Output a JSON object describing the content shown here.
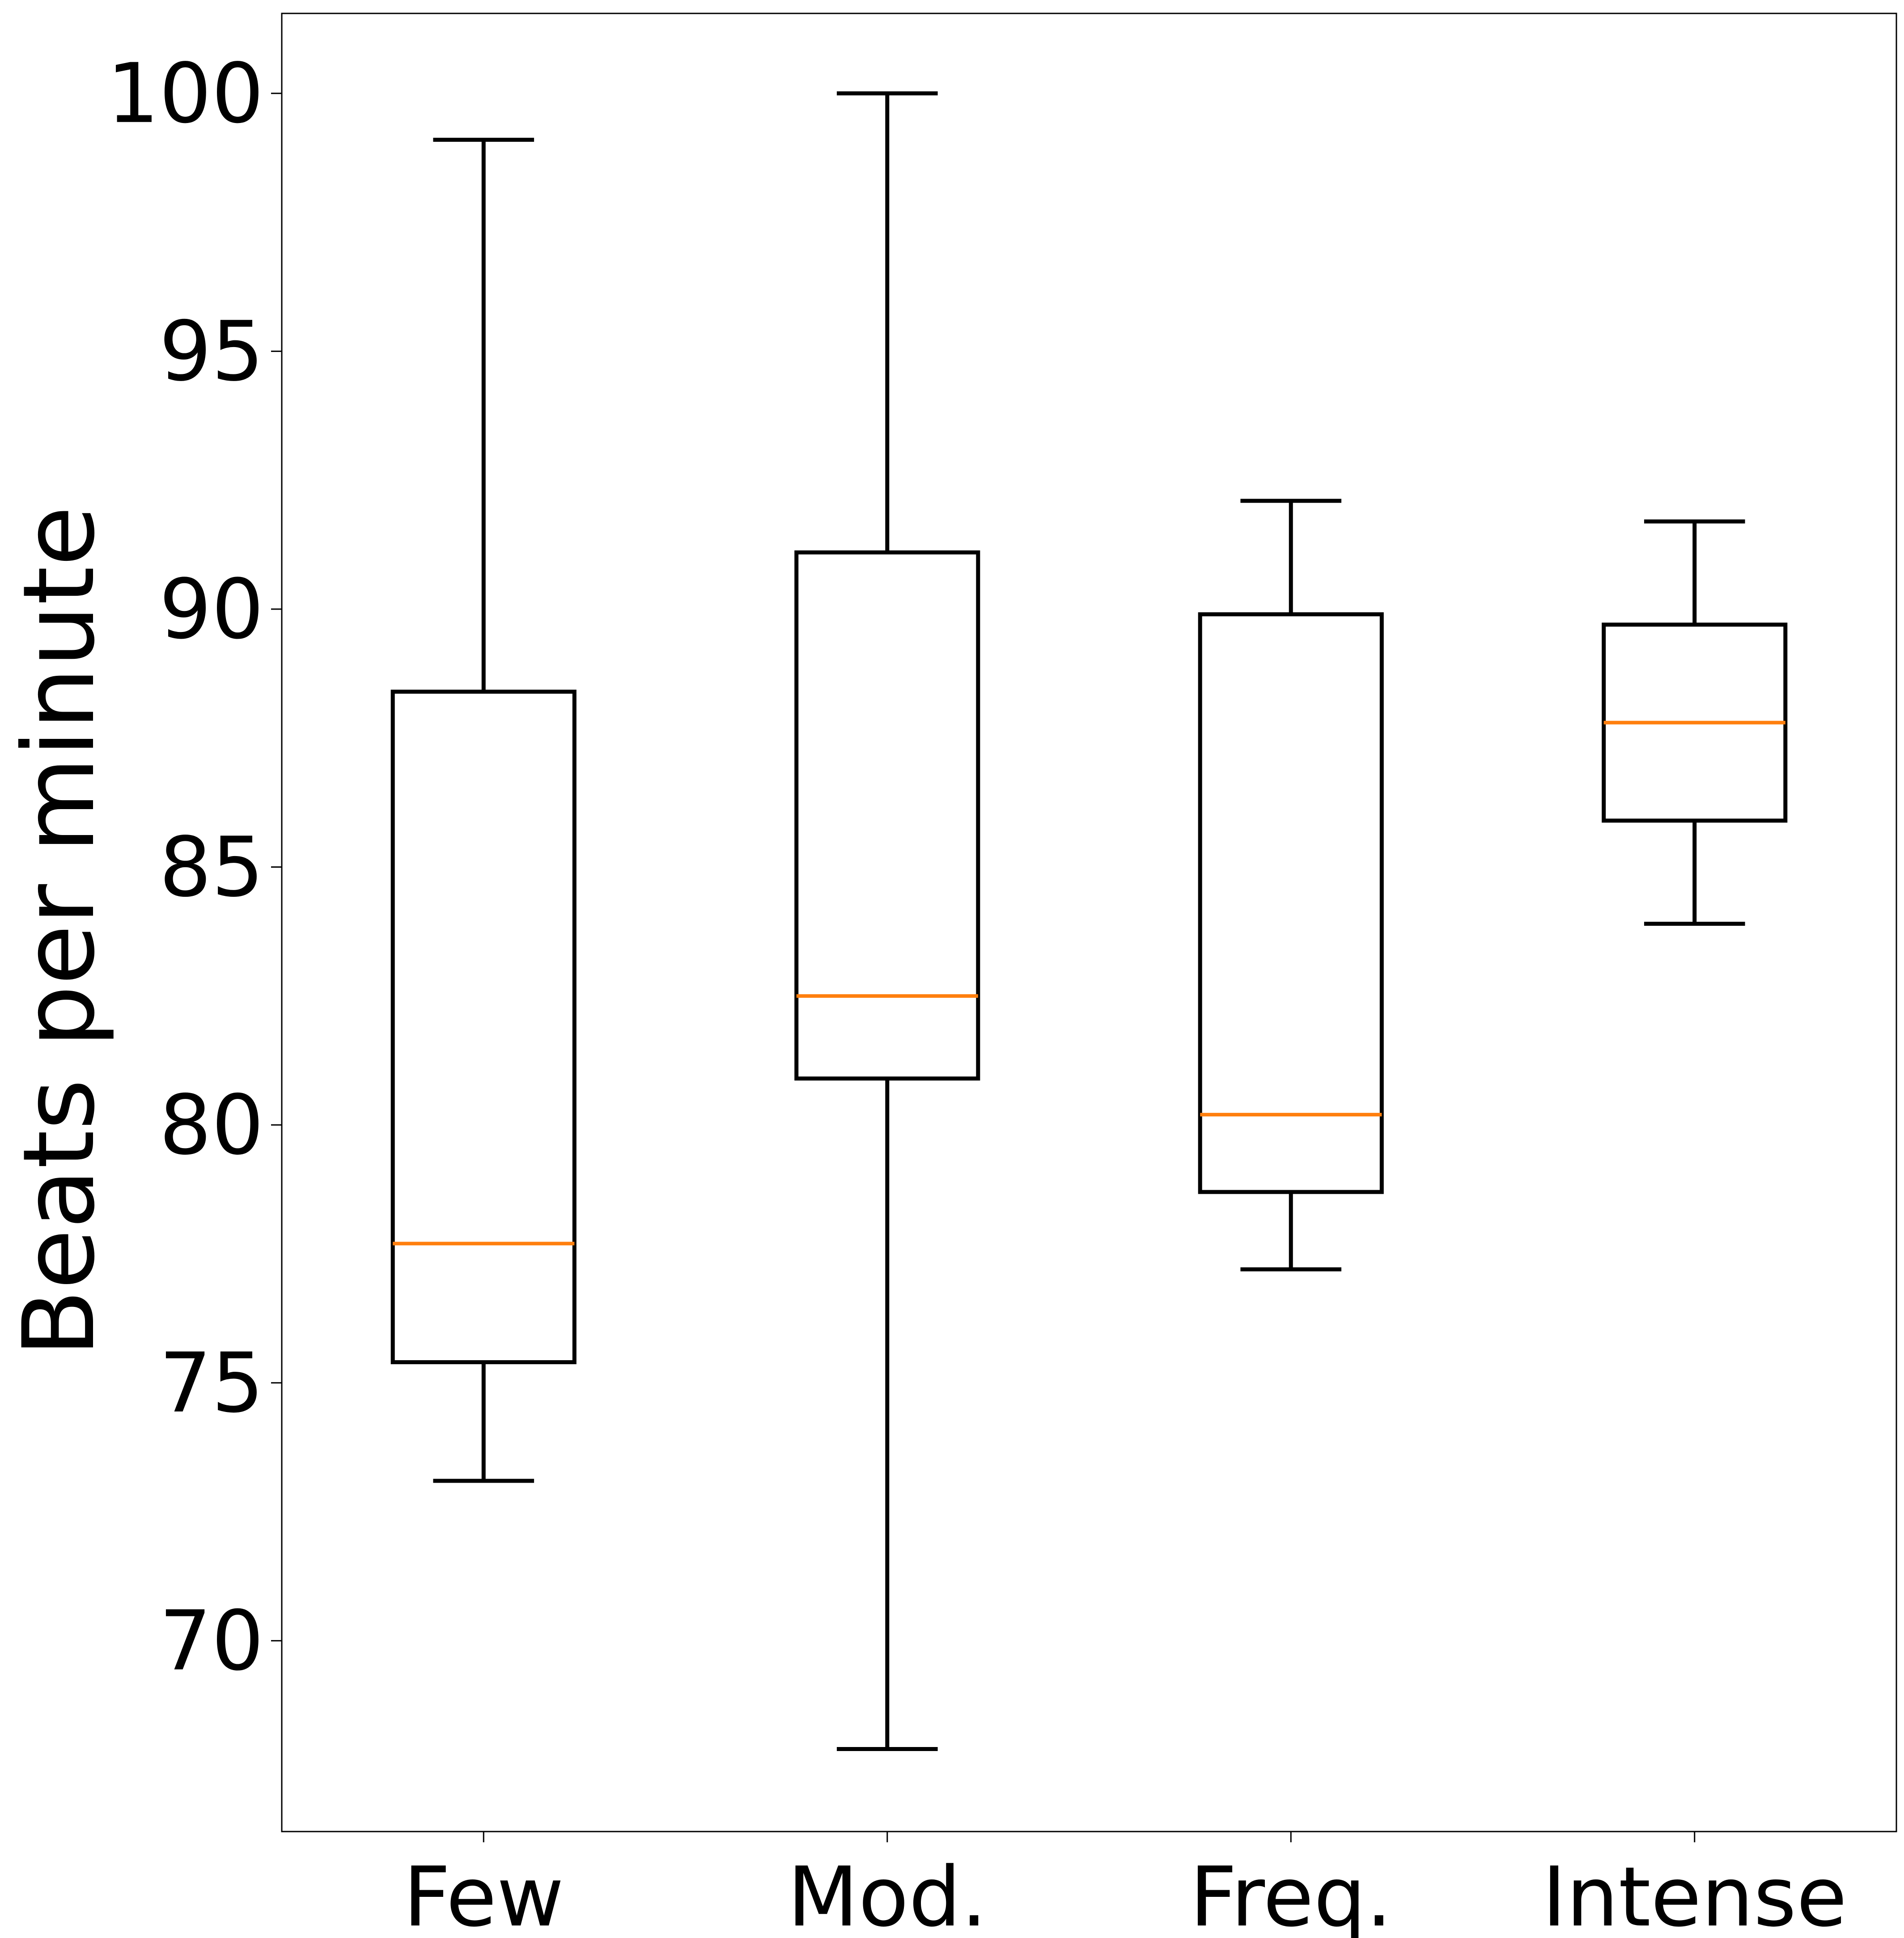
{
  "chart_data": {
    "type": "boxplot",
    "title": "",
    "xlabel": "",
    "ylabel": "Beats per minute",
    "ylim": [
      66.3,
      101.55
    ],
    "yticks": [
      70,
      75,
      80,
      85,
      90,
      95,
      100
    ],
    "ytick_labels": [
      "70",
      "75",
      "80",
      "85",
      "90",
      "95",
      "100"
    ],
    "grid": false,
    "categories": [
      "Few",
      "Mod.",
      "Freq.",
      "Intense"
    ],
    "boxes": [
      {
        "label": "Few",
        "whisker_low": 73.1,
        "q1": 75.4,
        "median": 77.7,
        "q3": 88.4,
        "whisker_high": 99.1
      },
      {
        "label": "Mod.",
        "whisker_low": 67.9,
        "q1": 80.9,
        "median": 82.5,
        "q3": 91.1,
        "whisker_high": 100.0
      },
      {
        "label": "Freq.",
        "whisker_low": 77.2,
        "q1": 78.7,
        "median": 80.2,
        "q3": 89.9,
        "whisker_high": 92.1
      },
      {
        "label": "Intense",
        "whisker_low": 83.9,
        "q1": 85.9,
        "median": 87.8,
        "q3": 89.7,
        "whisker_high": 91.7
      }
    ],
    "colors": {
      "box": "#000000",
      "median": "#ff7f0e",
      "axes": "#000000"
    }
  }
}
